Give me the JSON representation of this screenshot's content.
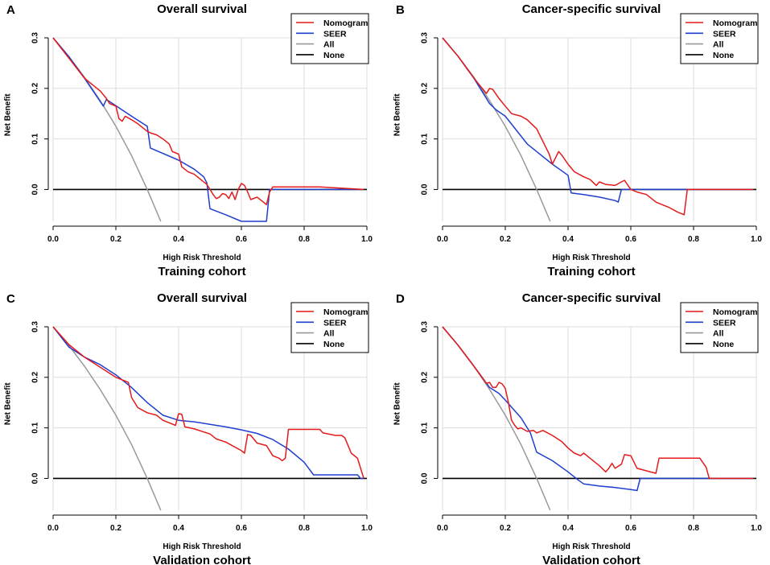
{
  "chart_data": [
    {
      "type": "line",
      "panel": "A",
      "title": "Overall survival",
      "xlabel": "High Risk Threshold",
      "ylabel": "Net Benefit",
      "cohort": "Training cohort",
      "xlim": [
        0,
        1
      ],
      "ylim": [
        -0.063,
        0.3
      ],
      "xticks": [
        0.0,
        0.2,
        0.4,
        0.6,
        0.8,
        1.0
      ],
      "xtick_labels": [
        "0.0",
        "0.2",
        "0.4",
        "0.6",
        "0.8",
        "1.0"
      ],
      "yticks": [
        0.0,
        0.1,
        0.2,
        0.3
      ],
      "ytick_labels": [
        "0.0",
        "0.1",
        "0.2",
        "0.3"
      ],
      "grid": true,
      "legend_position": "top-right",
      "series": [
        {
          "name": "Nomogram",
          "color": "#e41a1c",
          "x": [
            0.0,
            0.05,
            0.1,
            0.13,
            0.15,
            0.17,
            0.18,
            0.2,
            0.21,
            0.22,
            0.23,
            0.25,
            0.27,
            0.29,
            0.3,
            0.31,
            0.33,
            0.35,
            0.37,
            0.38,
            0.4,
            0.41,
            0.43,
            0.45,
            0.47,
            0.49,
            0.5,
            0.51,
            0.52,
            0.53,
            0.54,
            0.55,
            0.56,
            0.57,
            0.58,
            0.59,
            0.6,
            0.61,
            0.62,
            0.63,
            0.65,
            0.67,
            0.68,
            0.69,
            0.7,
            0.72,
            0.75,
            0.8,
            0.85,
            0.99
          ],
          "y": [
            0.3,
            0.26,
            0.22,
            0.205,
            0.195,
            0.18,
            0.17,
            0.165,
            0.14,
            0.135,
            0.145,
            0.138,
            0.13,
            0.12,
            0.115,
            0.112,
            0.108,
            0.1,
            0.09,
            0.075,
            0.07,
            0.045,
            0.035,
            0.03,
            0.02,
            0.01,
            0.0,
            -0.01,
            -0.018,
            -0.015,
            -0.008,
            -0.01,
            -0.018,
            -0.005,
            -0.02,
            0.0,
            0.012,
            0.008,
            -0.005,
            -0.02,
            -0.015,
            -0.025,
            -0.03,
            -0.005,
            0.005,
            0.005,
            0.005,
            0.005,
            0.005,
            0.0
          ]
        },
        {
          "name": "SEER",
          "color": "#1f3fcf",
          "x": [
            0.0,
            0.05,
            0.1,
            0.16,
            0.17,
            0.25,
            0.3,
            0.31,
            0.4,
            0.45,
            0.48,
            0.49,
            0.5,
            0.55,
            0.6,
            0.68,
            0.69,
            0.7,
            0.75,
            0.8,
            0.9,
            0.99
          ],
          "y": [
            0.3,
            0.263,
            0.22,
            0.165,
            0.178,
            0.145,
            0.125,
            0.082,
            0.058,
            0.04,
            0.025,
            0.013,
            -0.038,
            -0.05,
            -0.063,
            -0.063,
            0.0,
            0.0,
            0.0,
            0.0,
            0.0,
            0.0
          ]
        },
        {
          "name": "All",
          "color": "#999999",
          "x": [
            0.0,
            0.05,
            0.1,
            0.15,
            0.2,
            0.25,
            0.3,
            0.343
          ],
          "y": [
            0.3,
            0.263,
            0.222,
            0.176,
            0.125,
            0.067,
            0.0,
            -0.063
          ]
        },
        {
          "name": "None",
          "color": "#000000",
          "x": [
            0.0,
            1.0
          ],
          "y": [
            0.0,
            0.0
          ]
        }
      ]
    },
    {
      "type": "line",
      "panel": "B",
      "title": "Cancer-specific survival",
      "xlabel": "High Risk Threshold",
      "ylabel": "Net Benefit",
      "cohort": "Training cohort",
      "xlim": [
        0,
        1
      ],
      "ylim": [
        -0.063,
        0.3
      ],
      "xticks": [
        0.0,
        0.2,
        0.4,
        0.6,
        0.8,
        1.0
      ],
      "xtick_labels": [
        "0.0",
        "0.2",
        "0.4",
        "0.6",
        "0.8",
        "1.0"
      ],
      "yticks": [
        0.0,
        0.1,
        0.2,
        0.3
      ],
      "ytick_labels": [
        "0.0",
        "0.1",
        "0.2",
        "0.3"
      ],
      "grid": true,
      "legend_position": "top-right",
      "series": [
        {
          "name": "Nomogram",
          "color": "#e41a1c",
          "x": [
            0.0,
            0.05,
            0.1,
            0.12,
            0.14,
            0.15,
            0.16,
            0.18,
            0.2,
            0.22,
            0.25,
            0.27,
            0.3,
            0.32,
            0.34,
            0.35,
            0.37,
            0.38,
            0.4,
            0.42,
            0.45,
            0.47,
            0.49,
            0.5,
            0.52,
            0.55,
            0.57,
            0.58,
            0.6,
            0.62,
            0.65,
            0.68,
            0.7,
            0.72,
            0.75,
            0.77,
            0.78,
            0.79,
            0.85,
            0.99
          ],
          "y": [
            0.3,
            0.263,
            0.22,
            0.205,
            0.19,
            0.2,
            0.198,
            0.18,
            0.165,
            0.15,
            0.145,
            0.138,
            0.12,
            0.095,
            0.07,
            0.05,
            0.075,
            0.068,
            0.05,
            0.035,
            0.025,
            0.02,
            0.008,
            0.015,
            0.01,
            0.008,
            0.015,
            0.018,
            0.0,
            -0.005,
            -0.01,
            -0.025,
            -0.03,
            -0.035,
            -0.045,
            -0.05,
            0.0,
            0.0,
            0.0,
            0.0
          ]
        },
        {
          "name": "SEER",
          "color": "#1f3fcf",
          "x": [
            0.0,
            0.05,
            0.1,
            0.15,
            0.17,
            0.2,
            0.27,
            0.3,
            0.35,
            0.4,
            0.41,
            0.45,
            0.5,
            0.55,
            0.56,
            0.57,
            0.6,
            0.7,
            0.8,
            0.9,
            0.99
          ],
          "y": [
            0.3,
            0.263,
            0.22,
            0.17,
            0.158,
            0.145,
            0.09,
            0.075,
            0.05,
            0.028,
            -0.007,
            -0.01,
            -0.015,
            -0.022,
            -0.025,
            0.0,
            0.0,
            0.0,
            0.0,
            0.0,
            0.0
          ]
        },
        {
          "name": "All",
          "color": "#999999",
          "x": [
            0.0,
            0.05,
            0.1,
            0.15,
            0.2,
            0.25,
            0.3,
            0.343
          ],
          "y": [
            0.3,
            0.263,
            0.222,
            0.176,
            0.125,
            0.067,
            0.0,
            -0.063
          ]
        },
        {
          "name": "None",
          "color": "#000000",
          "x": [
            0.0,
            1.0
          ],
          "y": [
            0.0,
            0.0
          ]
        }
      ]
    },
    {
      "type": "line",
      "panel": "C",
      "title": "Overall survival",
      "xlabel": "High Risk Threshold",
      "ylabel": "Net Benefit",
      "cohort": "Validation cohort",
      "xlim": [
        0,
        1
      ],
      "ylim": [
        -0.063,
        0.3
      ],
      "xticks": [
        0.0,
        0.2,
        0.4,
        0.6,
        0.8,
        1.0
      ],
      "xtick_labels": [
        "0.0",
        "0.2",
        "0.4",
        "0.6",
        "0.8",
        "1.0"
      ],
      "yticks": [
        0.0,
        0.1,
        0.2,
        0.3
      ],
      "ytick_labels": [
        "0.0",
        "0.1",
        "0.2",
        "0.3"
      ],
      "grid": true,
      "legend_position": "top-right",
      "series": [
        {
          "name": "Nomogram",
          "color": "#e41a1c",
          "x": [
            0.0,
            0.05,
            0.07,
            0.1,
            0.2,
            0.24,
            0.25,
            0.27,
            0.3,
            0.33,
            0.35,
            0.37,
            0.39,
            0.4,
            0.41,
            0.42,
            0.45,
            0.5,
            0.52,
            0.55,
            0.6,
            0.61,
            0.62,
            0.63,
            0.65,
            0.68,
            0.7,
            0.72,
            0.73,
            0.74,
            0.75,
            0.8,
            0.85,
            0.86,
            0.9,
            0.92,
            0.93,
            0.95,
            0.97,
            0.98,
            0.99
          ],
          "y": [
            0.3,
            0.265,
            0.255,
            0.24,
            0.2,
            0.19,
            0.16,
            0.14,
            0.13,
            0.125,
            0.115,
            0.11,
            0.105,
            0.128,
            0.127,
            0.102,
            0.098,
            0.088,
            0.078,
            0.072,
            0.055,
            0.05,
            0.087,
            0.085,
            0.07,
            0.065,
            0.045,
            0.04,
            0.035,
            0.04,
            0.097,
            0.097,
            0.097,
            0.09,
            0.085,
            0.085,
            0.08,
            0.05,
            0.04,
            0.02,
            0.0
          ]
        },
        {
          "name": "SEER",
          "color": "#1f3fcf",
          "x": [
            0.0,
            0.05,
            0.1,
            0.15,
            0.2,
            0.25,
            0.3,
            0.35,
            0.4,
            0.45,
            0.5,
            0.55,
            0.6,
            0.65,
            0.7,
            0.75,
            0.8,
            0.83,
            0.85,
            0.9,
            0.97,
            0.98,
            0.99
          ],
          "y": [
            0.3,
            0.26,
            0.24,
            0.225,
            0.205,
            0.18,
            0.15,
            0.125,
            0.115,
            0.112,
            0.107,
            0.102,
            0.096,
            0.089,
            0.077,
            0.058,
            0.032,
            0.007,
            0.007,
            0.007,
            0.007,
            0.0,
            0.0
          ]
        },
        {
          "name": "All",
          "color": "#999999",
          "x": [
            0.0,
            0.05,
            0.1,
            0.15,
            0.2,
            0.25,
            0.3,
            0.343
          ],
          "y": [
            0.3,
            0.263,
            0.222,
            0.176,
            0.125,
            0.067,
            0.0,
            -0.063
          ]
        },
        {
          "name": "None",
          "color": "#000000",
          "x": [
            0.0,
            1.0
          ],
          "y": [
            0.0,
            0.0
          ]
        }
      ]
    },
    {
      "type": "line",
      "panel": "D",
      "title": "Cancer-specific survival",
      "xlabel": "High Risk Threshold",
      "ylabel": "Net Benefit",
      "cohort": "Validation cohort",
      "xlim": [
        0,
        1
      ],
      "ylim": [
        -0.063,
        0.3
      ],
      "xticks": [
        0.0,
        0.2,
        0.4,
        0.6,
        0.8,
        1.0
      ],
      "xtick_labels": [
        "0.0",
        "0.2",
        "0.4",
        "0.6",
        "0.8",
        "1.0"
      ],
      "yticks": [
        0.0,
        0.1,
        0.2,
        0.3
      ],
      "ytick_labels": [
        "0.0",
        "0.1",
        "0.2",
        "0.3"
      ],
      "grid": true,
      "legend_position": "top-right",
      "series": [
        {
          "name": "Nomogram",
          "color": "#e41a1c",
          "x": [
            0.0,
            0.05,
            0.1,
            0.14,
            0.15,
            0.16,
            0.17,
            0.18,
            0.19,
            0.2,
            0.21,
            0.22,
            0.23,
            0.24,
            0.25,
            0.27,
            0.29,
            0.3,
            0.32,
            0.35,
            0.38,
            0.4,
            0.42,
            0.44,
            0.45,
            0.47,
            0.5,
            0.52,
            0.53,
            0.54,
            0.55,
            0.57,
            0.58,
            0.6,
            0.62,
            0.65,
            0.68,
            0.69,
            0.75,
            0.8,
            0.82,
            0.84,
            0.85,
            0.99
          ],
          "y": [
            0.3,
            0.263,
            0.222,
            0.188,
            0.19,
            0.18,
            0.18,
            0.19,
            0.187,
            0.178,
            0.15,
            0.115,
            0.105,
            0.098,
            0.1,
            0.093,
            0.095,
            0.09,
            0.095,
            0.085,
            0.073,
            0.06,
            0.05,
            0.045,
            0.05,
            0.04,
            0.025,
            0.013,
            0.02,
            0.03,
            0.02,
            0.028,
            0.047,
            0.045,
            0.02,
            0.015,
            0.01,
            0.04,
            0.04,
            0.04,
            0.04,
            0.022,
            0.0,
            0.0
          ]
        },
        {
          "name": "SEER",
          "color": "#1f3fcf",
          "x": [
            0.0,
            0.05,
            0.1,
            0.15,
            0.18,
            0.2,
            0.25,
            0.28,
            0.3,
            0.35,
            0.4,
            0.43,
            0.45,
            0.5,
            0.55,
            0.6,
            0.62,
            0.63,
            0.65,
            0.7,
            0.8,
            0.9,
            0.99
          ],
          "y": [
            0.3,
            0.263,
            0.222,
            0.18,
            0.168,
            0.155,
            0.12,
            0.09,
            0.052,
            0.035,
            0.013,
            -0.002,
            -0.011,
            -0.015,
            -0.018,
            -0.022,
            -0.024,
            0.0,
            0.0,
            0.0,
            0.0,
            0.0,
            0.0
          ]
        },
        {
          "name": "All",
          "color": "#999999",
          "x": [
            0.0,
            0.05,
            0.1,
            0.15,
            0.2,
            0.25,
            0.3,
            0.343
          ],
          "y": [
            0.3,
            0.263,
            0.222,
            0.176,
            0.125,
            0.067,
            0.0,
            -0.063
          ]
        },
        {
          "name": "None",
          "color": "#000000",
          "x": [
            0.0,
            1.0
          ],
          "y": [
            0.0,
            0.0
          ]
        }
      ]
    }
  ]
}
